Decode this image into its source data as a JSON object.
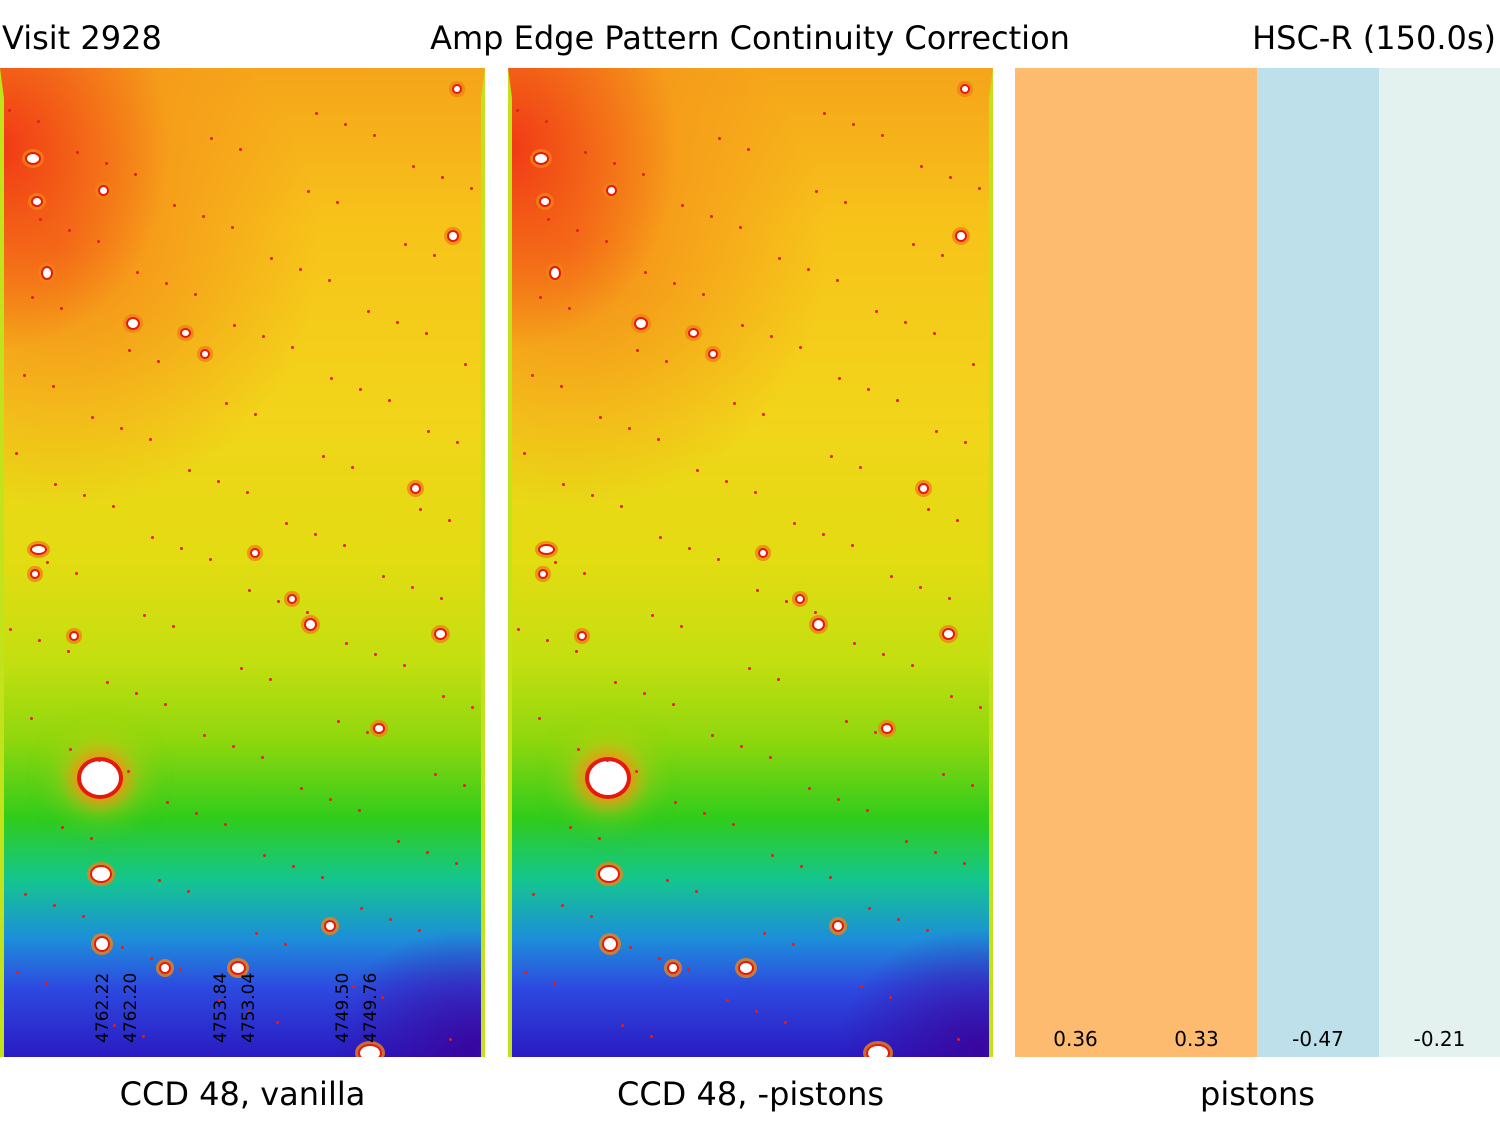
{
  "header": {
    "left": "Visit 2928",
    "center": "Amp Edge Pattern Continuity Correction",
    "right": "HSC-R (150.0s)"
  },
  "panels": {
    "vanilla": {
      "caption": "CCD 48, vanilla",
      "edge_values": [
        [
          "4762.22",
          "4762.20"
        ],
        [
          "4753.84",
          "4753.04"
        ],
        [
          "4749.50",
          "4749.76"
        ]
      ]
    },
    "corrected": {
      "caption": "CCD 48, -pistons"
    },
    "pistons": {
      "caption": "pistons",
      "bands": [
        {
          "value": "0.36",
          "color": "#fdbb70"
        },
        {
          "value": "0.33",
          "color": "#fdbb70"
        },
        {
          "value": "-0.47",
          "color": "#bde0ea"
        },
        {
          "value": "-0.21",
          "color": "#e3f2ee"
        }
      ]
    }
  }
}
